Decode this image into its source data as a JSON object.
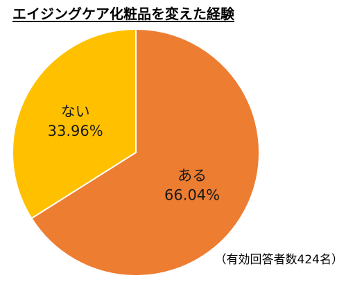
{
  "chart_data": {
    "type": "pie",
    "title": "エイジングケア化粧品を変えた経験",
    "slices": [
      {
        "label": "ある",
        "value": 66.04,
        "value_text": "66.04%",
        "color": "#ED7D31"
      },
      {
        "label": "ない",
        "value": 33.96,
        "value_text": "33.96%",
        "color": "#FFC000"
      }
    ],
    "start": "12 o'clock",
    "direction": "clockwise",
    "slice_border_color": "#FFFFFF",
    "note": "（有効回答者数424名）"
  }
}
